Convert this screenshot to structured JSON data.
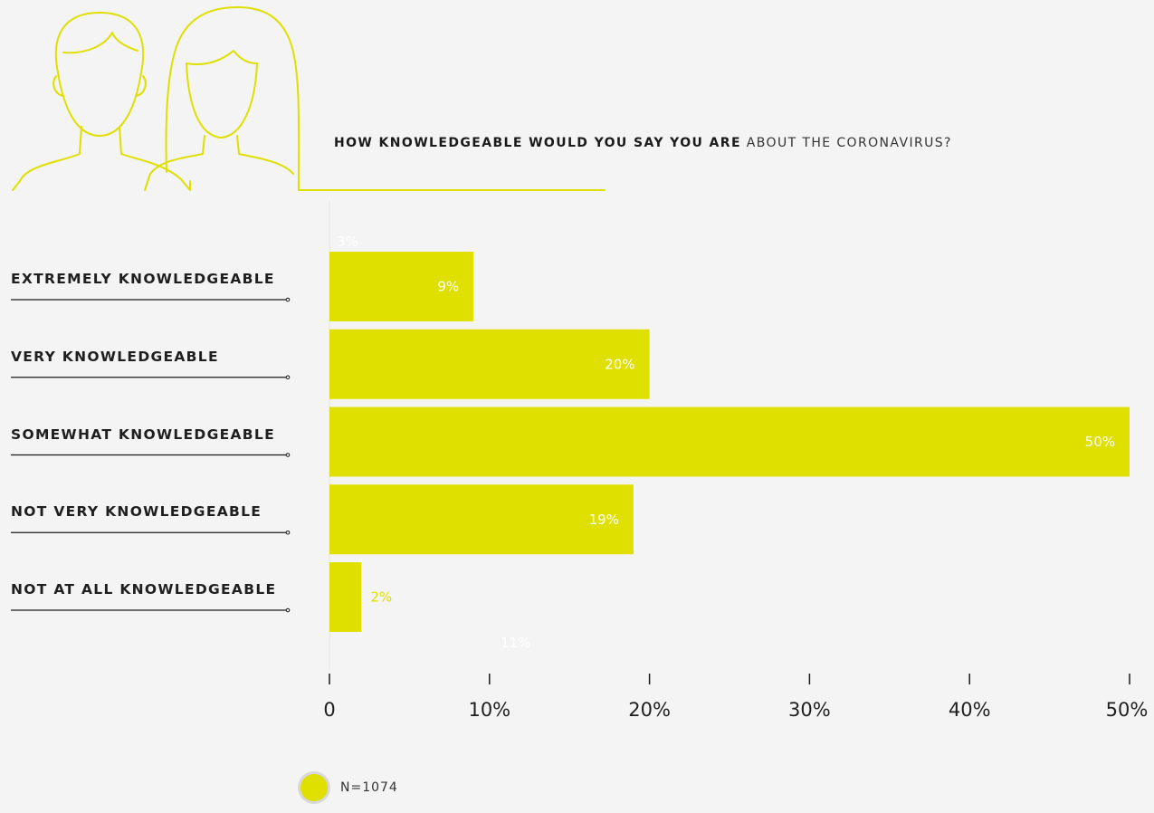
{
  "title": {
    "bold": "HOW KNOWLEDGEABLE WOULD YOU SAY YOU ARE",
    "rest": " ABOUT THE CORONAVIRUS?"
  },
  "legend": {
    "label": "N=1074"
  },
  "colors": {
    "bar": "#dfdf00",
    "label_inside": "#ffffff",
    "label_outside": "#dfdf00",
    "line": "#1a1a1a",
    "illustration": "#dfdf00"
  },
  "illustration": {
    "icon": "two-people-outline-icon"
  },
  "chart_data": {
    "type": "bar",
    "orientation": "horizontal",
    "categories": [
      "EXTREMELY KNOWLEDGEABLE",
      "VERY KNOWLEDGEABLE",
      "SOMEWHAT KNOWLEDGEABLE",
      "NOT VERY KNOWLEDGEABLE",
      "NOT AT ALL KNOWLEDGEABLE"
    ],
    "values": [
      9,
      20,
      50,
      19,
      2
    ],
    "value_labels": [
      "9%",
      "20%",
      "50%",
      "19%",
      "2%"
    ],
    "ghost_labels": [
      "3%",
      "11%"
    ],
    "xlim": [
      0,
      50
    ],
    "x_ticks": [
      0,
      10,
      20,
      30,
      40,
      50
    ],
    "x_tick_labels": [
      "0",
      "10%",
      "20%",
      "30%",
      "40%",
      "50%"
    ],
    "grid": false,
    "legend_position": "bottom-left"
  }
}
